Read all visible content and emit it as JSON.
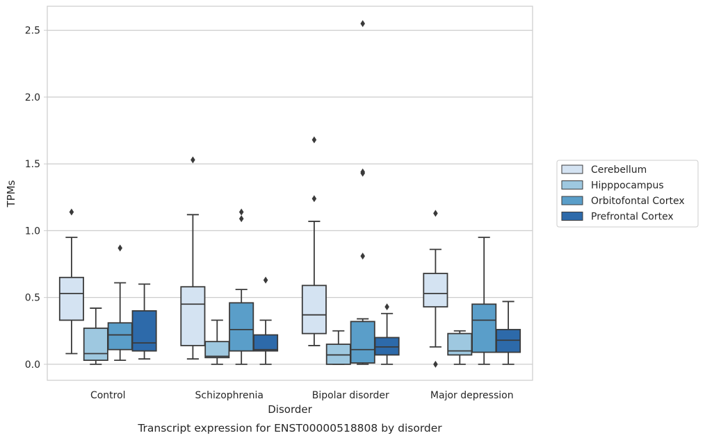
{
  "chart_data": {
    "type": "box",
    "caption": "Transcript expression for ENST00000518808 by disorder",
    "xlabel": "Disorder",
    "ylabel": "TPMs",
    "ylim": [
      -0.12,
      2.68
    ],
    "yticks": [
      0.0,
      0.5,
      1.0,
      1.5,
      2.0,
      2.5
    ],
    "ytick_labels": [
      "0.0",
      "0.5",
      "1.0",
      "1.5",
      "2.0",
      "2.5"
    ],
    "grid": "horizontal",
    "legend_position": "right",
    "categories": [
      "Control",
      "Schizophrenia",
      "Bipolar disorder",
      "Major depression"
    ],
    "series": [
      {
        "name": "Cerebellum",
        "color": "#d4e3f2",
        "boxes": [
          {
            "whisker_low": 0.08,
            "q1": 0.33,
            "median": 0.53,
            "q3": 0.65,
            "whisker_high": 0.95,
            "outliers": [
              1.14
            ]
          },
          {
            "whisker_low": 0.04,
            "q1": 0.14,
            "median": 0.45,
            "q3": 0.58,
            "whisker_high": 1.12,
            "outliers": [
              1.53
            ]
          },
          {
            "whisker_low": 0.14,
            "q1": 0.23,
            "median": 0.37,
            "q3": 0.59,
            "whisker_high": 1.07,
            "outliers": [
              1.24,
              1.68
            ]
          },
          {
            "whisker_low": 0.13,
            "q1": 0.43,
            "median": 0.53,
            "q3": 0.68,
            "whisker_high": 0.86,
            "outliers": [
              0.0,
              1.13
            ]
          }
        ]
      },
      {
        "name": "Hipppocampus",
        "color": "#9ec8e0",
        "boxes": [
          {
            "whisker_low": 0.0,
            "q1": 0.03,
            "median": 0.08,
            "q3": 0.27,
            "whisker_high": 0.42,
            "outliers": []
          },
          {
            "whisker_low": 0.0,
            "q1": 0.05,
            "median": 0.06,
            "q3": 0.17,
            "whisker_high": 0.33,
            "outliers": []
          },
          {
            "whisker_low": 0.0,
            "q1": 0.0,
            "median": 0.07,
            "q3": 0.15,
            "whisker_high": 0.25,
            "outliers": []
          },
          {
            "whisker_low": 0.0,
            "q1": 0.07,
            "median": 0.1,
            "q3": 0.23,
            "whisker_high": 0.25,
            "outliers": []
          }
        ]
      },
      {
        "name": "Orbitofontal Cortex",
        "color": "#5a9ec9",
        "boxes": [
          {
            "whisker_low": 0.03,
            "q1": 0.11,
            "median": 0.22,
            "q3": 0.31,
            "whisker_high": 0.61,
            "outliers": [
              0.87
            ]
          },
          {
            "whisker_low": 0.0,
            "q1": 0.1,
            "median": 0.26,
            "q3": 0.46,
            "whisker_high": 0.56,
            "outliers": [
              1.09,
              1.14
            ]
          },
          {
            "whisker_low": 0.0,
            "q1": 0.01,
            "median": 0.11,
            "q3": 0.32,
            "whisker_high": 0.34,
            "outliers": [
              0.81,
              1.43,
              1.44,
              2.55
            ]
          },
          {
            "whisker_low": 0.0,
            "q1": 0.09,
            "median": 0.33,
            "q3": 0.45,
            "whisker_high": 0.95,
            "outliers": []
          }
        ]
      },
      {
        "name": "Prefrontal Cortex",
        "color": "#2d6aaa",
        "boxes": [
          {
            "whisker_low": 0.04,
            "q1": 0.1,
            "median": 0.16,
            "q3": 0.4,
            "whisker_high": 0.6,
            "outliers": []
          },
          {
            "whisker_low": 0.0,
            "q1": 0.1,
            "median": 0.11,
            "q3": 0.22,
            "whisker_high": 0.33,
            "outliers": [
              0.63
            ]
          },
          {
            "whisker_low": 0.0,
            "q1": 0.07,
            "median": 0.13,
            "q3": 0.2,
            "whisker_high": 0.38,
            "outliers": [
              0.43
            ]
          },
          {
            "whisker_low": 0.0,
            "q1": 0.09,
            "median": 0.18,
            "q3": 0.26,
            "whisker_high": 0.47,
            "outliers": []
          }
        ]
      }
    ]
  }
}
